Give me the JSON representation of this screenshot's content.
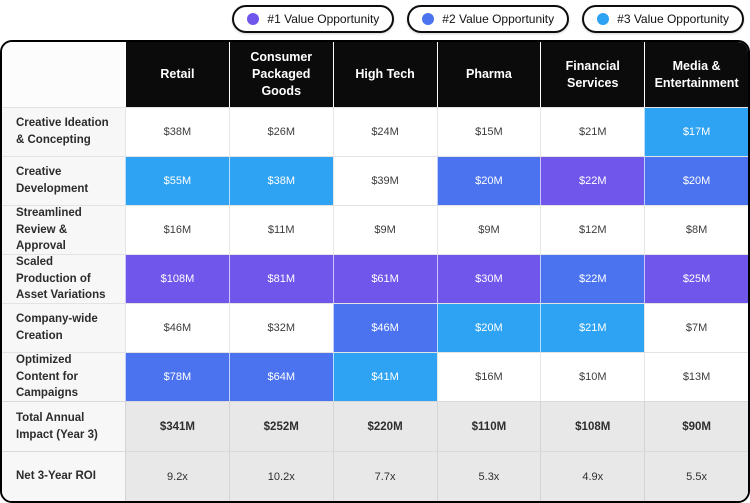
{
  "chart_data": {
    "type": "table",
    "legend": [
      {
        "label": "#1 Value Opportunity",
        "color": "#7156EB"
      },
      {
        "label": "#2 Value Opportunity",
        "color": "#4B73F0"
      },
      {
        "label": "#3 Value Opportunity",
        "color": "#2EA2F3"
      }
    ],
    "columns": [
      "Retail",
      "Consumer Packaged Goods",
      "High Tech",
      "Pharma",
      "Financial Services",
      "Media & Entertainment"
    ],
    "rows": [
      {
        "label": "Creative Ideation & Concepting",
        "values": [
          "$38M",
          "$26M",
          "$24M",
          "$15M",
          "$21M",
          "$17M"
        ],
        "highlights": [
          0,
          0,
          0,
          0,
          0,
          3
        ]
      },
      {
        "label": "Creative Development",
        "values": [
          "$55M",
          "$38M",
          "$39M",
          "$20M",
          "$22M",
          "$20M"
        ],
        "highlights": [
          3,
          3,
          0,
          2,
          1,
          2
        ]
      },
      {
        "label": "Streamlined Review & Approval",
        "values": [
          "$16M",
          "$11M",
          "$9M",
          "$9M",
          "$12M",
          "$8M"
        ],
        "highlights": [
          0,
          0,
          0,
          0,
          0,
          0
        ]
      },
      {
        "label": "Scaled Production of Asset Variations",
        "values": [
          "$108M",
          "$81M",
          "$61M",
          "$30M",
          "$22M",
          "$25M"
        ],
        "highlights": [
          1,
          1,
          1,
          1,
          2,
          1
        ]
      },
      {
        "label": "Company-wide Creation",
        "values": [
          "$46M",
          "$32M",
          "$46M",
          "$20M",
          "$21M",
          "$7M"
        ],
        "highlights": [
          0,
          0,
          2,
          3,
          3,
          0
        ]
      },
      {
        "label": "Optimized Content for Campaigns",
        "values": [
          "$78M",
          "$64M",
          "$41M",
          "$16M",
          "$10M",
          "$13M"
        ],
        "highlights": [
          2,
          2,
          3,
          0,
          0,
          0
        ]
      }
    ],
    "summary_rows": [
      {
        "label": "Total Annual Impact (Year 3)",
        "values": [
          "$341M",
          "$252M",
          "$220M",
          "$110M",
          "$108M",
          "$90M"
        ],
        "bold": true
      },
      {
        "label": "Net 3-Year ROI",
        "values": [
          "9.2x",
          "10.2x",
          "7.7x",
          "5.3x",
          "4.9x",
          "5.5x"
        ],
        "bold": false
      }
    ],
    "highlight_levels": {
      "0": "none",
      "1": "#1 Value Opportunity",
      "2": "#2 Value Opportunity",
      "3": "#3 Value Opportunity"
    },
    "colors": {
      "opportunity_1": "#7156EB",
      "opportunity_2": "#4B73F0",
      "opportunity_3": "#2EA2F3",
      "header_bg": "#0B0B0B",
      "label_bg": "#F7F7F7",
      "summary_bg": "#E8E8E8",
      "table_border": "#000000"
    }
  }
}
